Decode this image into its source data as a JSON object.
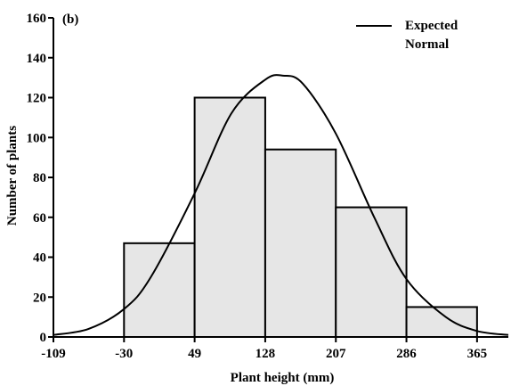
{
  "chart_data": {
    "type": "bar",
    "panel_label": "(b)",
    "xlabel": "Plant height (mm)",
    "ylabel": "Number of plants",
    "xlim": [
      -109,
      400
    ],
    "ylim": [
      0,
      160
    ],
    "x_ticks": [
      -109,
      -30,
      49,
      128,
      207,
      286,
      365
    ],
    "y_ticks": [
      0,
      20,
      40,
      60,
      80,
      100,
      120,
      140,
      160
    ],
    "bins": [
      {
        "from": -30,
        "to": 49,
        "count": 47
      },
      {
        "from": 49,
        "to": 128,
        "count": 120
      },
      {
        "from": 128,
        "to": 207,
        "count": 94
      },
      {
        "from": 207,
        "to": 286,
        "count": 65
      },
      {
        "from": 286,
        "to": 365,
        "count": 15
      }
    ],
    "series": [
      {
        "name": "Expected Normal",
        "type": "line",
        "x": [
          -109,
          -70,
          -30,
          0,
          49,
          90,
          128,
          148,
          170,
          207,
          250,
          286,
          330,
          365,
          400
        ],
        "y": [
          1,
          4,
          14,
          30,
          72,
          112,
          129,
          131,
          127,
          102,
          60,
          29,
          10,
          3,
          1
        ]
      }
    ],
    "legend": {
      "position": "top-right",
      "line1": "Expected",
      "line2": "Normal"
    },
    "colors": {
      "bar_fill": "#e6e6e6",
      "bar_stroke": "#000000",
      "curve": "#000000"
    }
  }
}
